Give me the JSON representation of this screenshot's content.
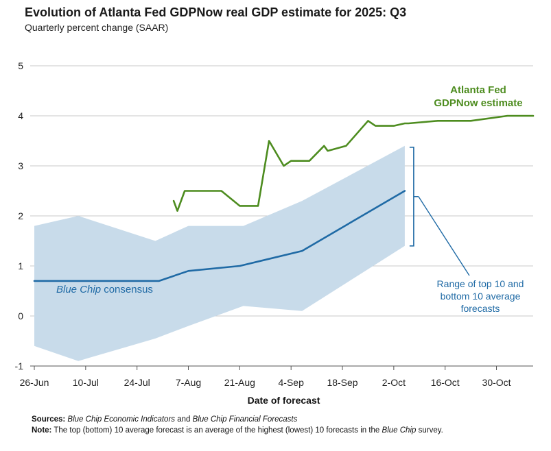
{
  "chart_data": {
    "type": "line",
    "title": "Evolution of Atlanta Fed GDPNow real GDP estimate for 2025: Q3",
    "subtitle": "Quarterly percent change (SAAR)",
    "xlabel": "Date of forecast",
    "ylabel": "",
    "ylim": [
      -1,
      5
    ],
    "yticks": [
      -1,
      0,
      1,
      2,
      3,
      4,
      5
    ],
    "ytick_labels": [
      "-1",
      "0",
      "1",
      "2",
      "3",
      "4",
      "5"
    ],
    "x_unit": "days since 26-Jun",
    "xlim": [
      0,
      136
    ],
    "xticks": [
      0,
      14,
      28,
      42,
      56,
      70,
      84,
      98,
      112,
      126
    ],
    "xtick_labels": [
      "26-Jun",
      "10-Jul",
      "24-Jul",
      "7-Aug",
      "21-Aug",
      "4-Sep",
      "18-Sep",
      "2-Oct",
      "16-Oct",
      "30-Oct"
    ],
    "grid": true,
    "series": [
      {
        "name": "Atlanta Fed GDPNow estimate",
        "label_lines": [
          "Atlanta Fed",
          "GDPNow estimate"
        ],
        "color": "#4d8c1f",
        "x": [
          38,
          39,
          41,
          51,
          56,
          61,
          64,
          68,
          70,
          75,
          79,
          80,
          85,
          91,
          93,
          98,
          101,
          102,
          110,
          119,
          129,
          136
        ],
        "y": [
          2.3,
          2.1,
          2.5,
          2.5,
          2.2,
          2.2,
          3.5,
          3.0,
          3.1,
          3.1,
          3.4,
          3.3,
          3.4,
          3.9,
          3.8,
          3.8,
          3.85,
          3.85,
          3.9,
          3.9,
          4.0,
          4.0
        ]
      },
      {
        "name": "Blue Chip consensus",
        "label_italic": "Blue Chip",
        "label_rest": " consensus",
        "color": "#1f6aa5",
        "x": [
          0,
          10,
          34,
          42,
          56,
          73,
          101
        ],
        "y": [
          0.7,
          0.7,
          0.7,
          0.9,
          1.0,
          1.3,
          2.5
        ]
      }
    ],
    "band": {
      "name": "Range of top 10 and bottom 10 average forecasts",
      "label_lines": [
        "Range of top 10 and",
        "bottom 10 average",
        "forecasts"
      ],
      "color": "#c8dbea",
      "x": [
        0,
        12,
        33,
        42,
        57,
        73,
        101
      ],
      "upper": [
        1.8,
        2.0,
        1.5,
        1.8,
        1.8,
        2.3,
        3.4
      ],
      "lower": [
        -0.6,
        -0.9,
        -0.45,
        -0.2,
        0.2,
        0.1,
        1.4
      ]
    }
  },
  "notes": {
    "sources_label": "Sources:",
    "sources_italic_1": "Blue Chip Economic Indicators",
    "sources_mid": " and ",
    "sources_italic_2": "Blue Chip Financial Forecasts",
    "note_label": "Note:",
    "note_text": " The top (bottom) 10 average forecast is an average of the highest (lowest) 10 forecasts in the ",
    "note_italic": "Blue Chip",
    "note_end": " survey."
  }
}
